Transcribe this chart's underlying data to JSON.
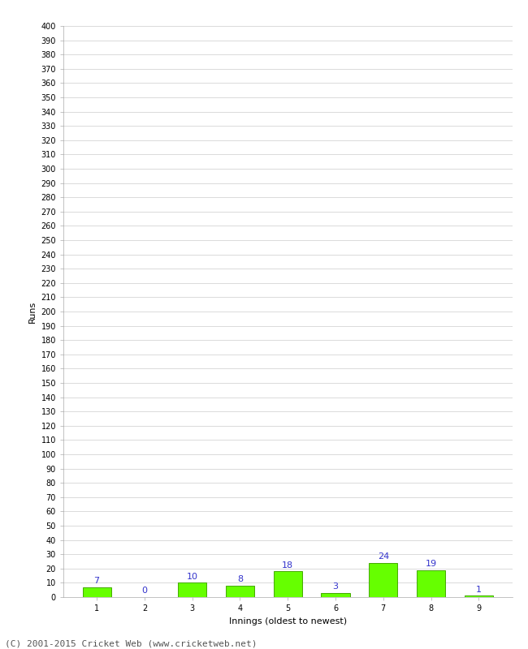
{
  "categories": [
    "1",
    "2",
    "3",
    "4",
    "5",
    "6",
    "7",
    "8",
    "9"
  ],
  "values": [
    7,
    0,
    10,
    8,
    18,
    3,
    24,
    19,
    1
  ],
  "bar_color": "#66ff00",
  "bar_edge_color": "#44aa00",
  "label_color": "#3333cc",
  "xlabel": "Innings (oldest to newest)",
  "ylabel": "Runs",
  "ylim": [
    0,
    400
  ],
  "footer": "(C) 2001-2015 Cricket Web (www.cricketweb.net)",
  "background_color": "#ffffff",
  "grid_color": "#cccccc",
  "label_fontsize": 8,
  "axis_label_fontsize": 8,
  "tick_fontsize": 7,
  "footer_fontsize": 8
}
